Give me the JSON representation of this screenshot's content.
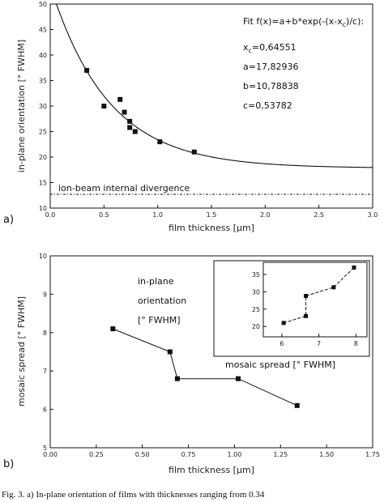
{
  "chart_data": [
    {
      "type": "scatter",
      "panel_label": "a)",
      "xlabel": "film thickness [µm]",
      "ylabel": "in-plane orientation [° FWHM]",
      "xlim": [
        0.0,
        3.0
      ],
      "ylim": [
        10,
        50
      ],
      "xticks": [
        0.0,
        0.5,
        1.0,
        1.5,
        2.0,
        2.5,
        3.0
      ],
      "xtick_labels": [
        "0.0",
        "0.5",
        "1.0",
        "1.5",
        "2.0",
        "2.5",
        "3.0"
      ],
      "yticks": [
        10,
        15,
        20,
        25,
        30,
        35,
        40,
        45,
        50
      ],
      "ytick_labels": [
        "10",
        "15",
        "20",
        "25",
        "30",
        "35",
        "40",
        "45",
        "50"
      ],
      "points": [
        {
          "x": 0.34,
          "y": 37.0
        },
        {
          "x": 0.5,
          "y": 30.0
        },
        {
          "x": 0.65,
          "y": 31.3
        },
        {
          "x": 0.69,
          "y": 28.8
        },
        {
          "x": 0.74,
          "y": 27.0
        },
        {
          "x": 0.74,
          "y": 25.8
        },
        {
          "x": 0.79,
          "y": 25.0
        },
        {
          "x": 1.02,
          "y": 23.0
        },
        {
          "x": 1.34,
          "y": 21.0
        }
      ],
      "fit": {
        "equation": "Fit f(x)=a+b*exp(-(x-x_c)/c):",
        "lines": [
          "x_c=0,64551",
          "a=17,82936",
          "b=10,78838",
          "c=0,53782"
        ],
        "xc": 0.64551,
        "a": 17.82936,
        "b": 10.78838,
        "c": 0.53782
      },
      "reference_line": {
        "y": 12.7,
        "label": "ion-beam internal divergence"
      }
    },
    {
      "type": "line",
      "panel_label": "b)",
      "xlabel": "film thickness [µm]",
      "ylabel": "mosaic spread [° FWHM]",
      "xlim": [
        0.0,
        1.75
      ],
      "ylim": [
        5,
        10
      ],
      "xticks": [
        0.0,
        0.25,
        0.5,
        0.75,
        1.0,
        1.25,
        1.5,
        1.75
      ],
      "xtick_labels": [
        "0.00",
        "0.25",
        "0.50",
        "0.75",
        "1.00",
        "1.25",
        "1.50",
        "1.75"
      ],
      "yticks": [
        5,
        6,
        7,
        8,
        9,
        10
      ],
      "ytick_labels": [
        "5",
        "6",
        "7",
        "8",
        "9",
        "10"
      ],
      "points": [
        {
          "x": 0.34,
          "y": 8.1
        },
        {
          "x": 0.65,
          "y": 7.5
        },
        {
          "x": 0.69,
          "y": 6.8
        },
        {
          "x": 1.02,
          "y": 6.8
        },
        {
          "x": 1.34,
          "y": 6.1
        }
      ],
      "inset": {
        "type": "line",
        "xlabel": "mosaic spread [° FWHM]",
        "ylabel_lines": [
          "in-plane",
          "orientation",
          "[° FWHM]"
        ],
        "xlim": [
          5.5,
          8.3
        ],
        "ylim": [
          17,
          38.5
        ],
        "xticks": [
          6,
          7,
          8
        ],
        "xtick_labels": [
          "6",
          "7",
          "8"
        ],
        "yticks": [
          20,
          25,
          30,
          35
        ],
        "ytick_labels": [
          "20",
          "25",
          "30",
          "35"
        ],
        "points": [
          {
            "x": 6.05,
            "y": 21.0
          },
          {
            "x": 6.65,
            "y": 23.0
          },
          {
            "x": 6.65,
            "y": 28.8
          },
          {
            "x": 7.4,
            "y": 31.3
          },
          {
            "x": 7.95,
            "y": 37.0
          }
        ]
      }
    }
  ],
  "caption": "Fig. 3. a) In-plane orientation of films with thicknesses ranging from 0.34"
}
